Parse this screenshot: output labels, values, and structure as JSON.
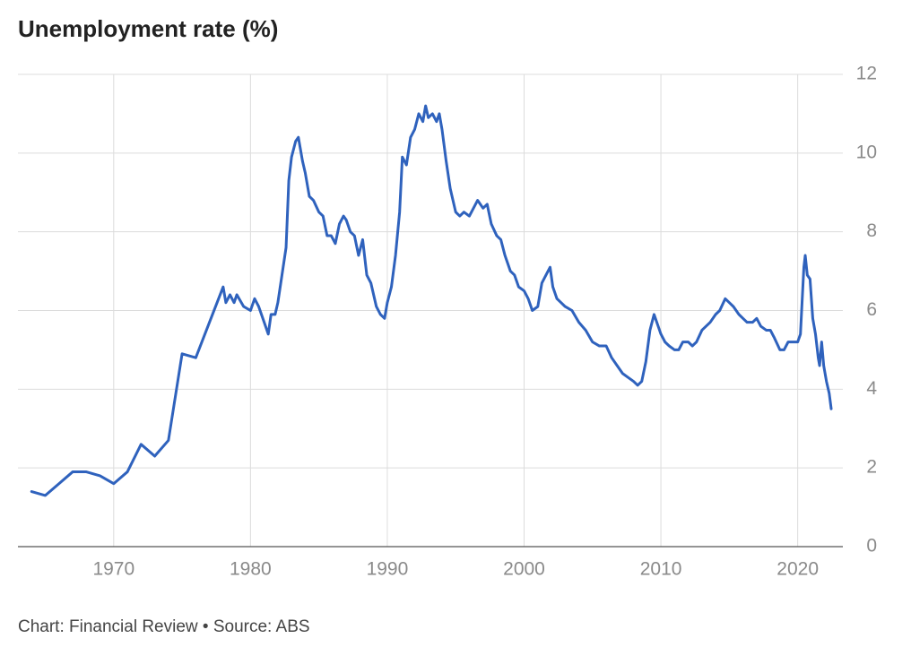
{
  "chart_data": {
    "type": "line",
    "title": "Unemployment rate (%)",
    "footer": "Chart: Financial Review • Source: ABS",
    "xlim": [
      1963,
      2023.3
    ],
    "ylim": [
      0,
      12
    ],
    "xticks": [
      1970,
      1980,
      1990,
      2000,
      2010,
      2020
    ],
    "yticks": [
      0,
      2,
      4,
      6,
      8,
      10,
      12
    ],
    "grid": true,
    "x": [
      1964,
      1965,
      1966,
      1967,
      1968,
      1969,
      1970,
      1971,
      1972,
      1973,
      1974,
      1975,
      1976,
      1977,
      1978,
      1978.2,
      1978.5,
      1978.8,
      1979,
      1979.5,
      1980,
      1980.3,
      1980.6,
      1981,
      1981.3,
      1981.5,
      1981.8,
      1982,
      1982.3,
      1982.6,
      1982.8,
      1983,
      1983.3,
      1983.5,
      1983.8,
      1984,
      1984.3,
      1984.6,
      1985,
      1985.3,
      1985.6,
      1985.9,
      1986.2,
      1986.5,
      1986.8,
      1987,
      1987.3,
      1987.6,
      1987.9,
      1988.2,
      1988.5,
      1988.8,
      1989.2,
      1989.5,
      1989.8,
      1990,
      1990.3,
      1990.6,
      1990.9,
      1991.1,
      1991.4,
      1991.7,
      1992,
      1992.3,
      1992.6,
      1992.8,
      1993,
      1993.3,
      1993.6,
      1993.8,
      1994,
      1994.3,
      1994.6,
      1995,
      1995.3,
      1995.6,
      1996,
      1996.3,
      1996.6,
      1997,
      1997.3,
      1997.6,
      1998,
      1998.3,
      1998.6,
      1999,
      1999.3,
      1999.6,
      2000,
      2000.3,
      2000.6,
      2001,
      2001.3,
      2001.6,
      2001.9,
      2002.1,
      2002.4,
      2002.7,
      2003,
      2003.5,
      2004,
      2004.5,
      2005,
      2005.5,
      2006,
      2006.4,
      2006.8,
      2007.2,
      2007.6,
      2008,
      2008.3,
      2008.6,
      2008.9,
      2009.2,
      2009.5,
      2009.8,
      2010,
      2010.3,
      2010.6,
      2011,
      2011.3,
      2011.6,
      2012,
      2012.3,
      2012.6,
      2013,
      2013.3,
      2013.6,
      2014,
      2014.3,
      2014.7,
      2015,
      2015.3,
      2015.7,
      2016,
      2016.3,
      2016.7,
      2017,
      2017.3,
      2017.7,
      2018,
      2018.3,
      2018.7,
      2019,
      2019.3,
      2019.7,
      2020,
      2020.2,
      2020.45,
      2020.55,
      2020.7,
      2020.9,
      2021.1,
      2021.3,
      2021.5,
      2021.6,
      2021.75,
      2021.9,
      2022.1,
      2022.3,
      2022.45
    ],
    "series": [
      {
        "name": "Unemployment rate",
        "color": "#2f62bd",
        "values": [
          1.4,
          1.3,
          1.6,
          1.9,
          1.9,
          1.8,
          1.6,
          1.9,
          2.6,
          2.3,
          2.7,
          4.9,
          4.8,
          5.7,
          6.6,
          6.2,
          6.4,
          6.2,
          6.4,
          6.1,
          6.0,
          6.3,
          6.1,
          5.7,
          5.4,
          5.9,
          5.9,
          6.2,
          6.9,
          7.6,
          9.3,
          9.9,
          10.3,
          10.4,
          9.8,
          9.5,
          8.9,
          8.8,
          8.5,
          8.4,
          7.9,
          7.9,
          7.7,
          8.2,
          8.4,
          8.3,
          8.0,
          7.9,
          7.4,
          7.8,
          6.9,
          6.7,
          6.1,
          5.9,
          5.8,
          6.2,
          6.6,
          7.4,
          8.5,
          9.9,
          9.7,
          10.4,
          10.6,
          11.0,
          10.8,
          11.2,
          10.9,
          11.0,
          10.8,
          11.0,
          10.6,
          9.8,
          9.1,
          8.5,
          8.4,
          8.5,
          8.4,
          8.6,
          8.8,
          8.6,
          8.7,
          8.2,
          7.9,
          7.8,
          7.4,
          7.0,
          6.9,
          6.6,
          6.5,
          6.3,
          6.0,
          6.1,
          6.7,
          6.9,
          7.1,
          6.6,
          6.3,
          6.2,
          6.1,
          6.0,
          5.7,
          5.5,
          5.2,
          5.1,
          5.1,
          4.8,
          4.6,
          4.4,
          4.3,
          4.2,
          4.1,
          4.2,
          4.7,
          5.5,
          5.9,
          5.6,
          5.4,
          5.2,
          5.1,
          5.0,
          5.0,
          5.2,
          5.2,
          5.1,
          5.2,
          5.5,
          5.6,
          5.7,
          5.9,
          6.0,
          6.3,
          6.2,
          6.1,
          5.9,
          5.8,
          5.7,
          5.7,
          5.8,
          5.6,
          5.5,
          5.5,
          5.3,
          5.0,
          5.0,
          5.2,
          5.2,
          5.2,
          5.4,
          7.1,
          7.4,
          6.9,
          6.8,
          5.8,
          5.4,
          4.8,
          4.6,
          5.2,
          4.6,
          4.2,
          3.9,
          3.5
        ]
      }
    ]
  }
}
